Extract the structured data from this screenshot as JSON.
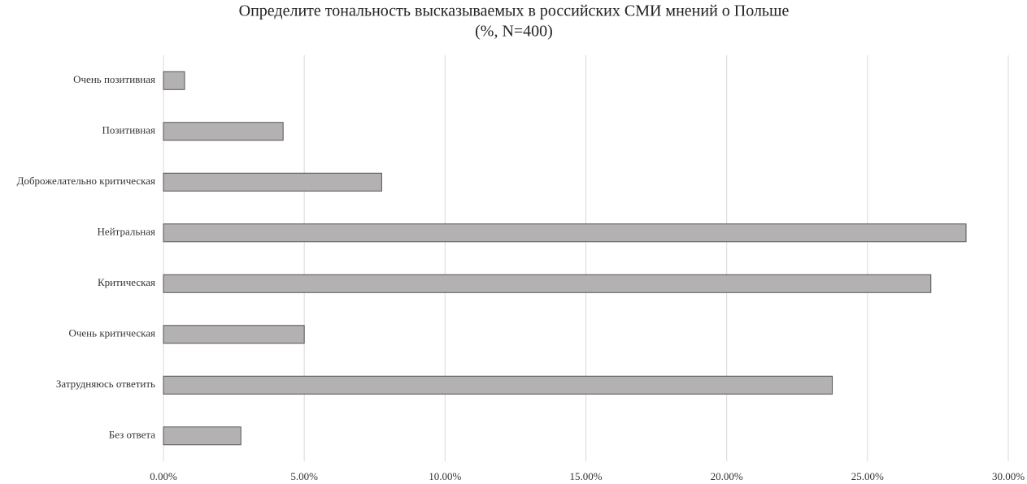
{
  "chart_data": {
    "type": "hbar",
    "title": "Определите тональность высказываемых в российских СМИ мнений о Польше",
    "subtitle": "(%, N=400)",
    "categories": [
      "Очень позитивная",
      "Позитивная",
      "Доброжелательно критическая",
      "Нейтральная",
      "Критическая",
      "Очень критическая",
      "Затрудняюсь ответить",
      "Без ответа"
    ],
    "values": [
      0.75,
      4.25,
      7.75,
      28.5,
      27.25,
      5,
      23.75,
      2.75
    ],
    "color": "#b3b1b2",
    "xlim": [
      0,
      30
    ],
    "xticks": [
      {
        "value": 0,
        "label": "0.00%"
      },
      {
        "value": 5,
        "label": "5.00%"
      },
      {
        "value": 10,
        "label": "10.00%"
      },
      {
        "value": 15,
        "label": "15.00%"
      },
      {
        "value": 20,
        "label": "20.00%"
      },
      {
        "value": 25,
        "label": "25.00%"
      },
      {
        "value": 30,
        "label": "30.00%"
      }
    ],
    "grid": true
  }
}
